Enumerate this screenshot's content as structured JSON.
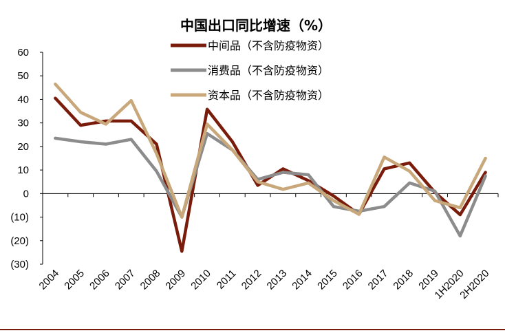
{
  "chart_data": {
    "type": "line",
    "title": "中国出口同比增速（%）",
    "categories": [
      "2004",
      "2005",
      "2006",
      "2007",
      "2008",
      "2009",
      "2010",
      "2011",
      "2012",
      "2013",
      "2014",
      "2015",
      "2016",
      "2017",
      "2018",
      "2019",
      "1H2020",
      "2H2020"
    ],
    "ylim": [
      -30,
      60
    ],
    "yticks": [
      60,
      50,
      40,
      30,
      20,
      10,
      0,
      -10,
      -20,
      -30
    ],
    "ytick_labels": [
      "60",
      "50",
      "40",
      "30",
      "20",
      "10",
      "0",
      "(10)",
      "(20)",
      "(30)"
    ],
    "negative_label_color": "#ff0000",
    "series": [
      {
        "name": "中间品（不含防疫物资）",
        "color": "#7a1c0c",
        "values": [
          40.5,
          29,
          30.8,
          30.8,
          21,
          -24.5,
          35.8,
          22,
          3.5,
          10.5,
          5.5,
          -1,
          -8.8,
          10.5,
          13,
          0.5,
          -9,
          9
        ]
      },
      {
        "name": "消费品（不含防疫物资）",
        "color": "#8c8c8c",
        "values": [
          23.5,
          22,
          21,
          23,
          9.5,
          -10,
          25.5,
          18.5,
          6,
          9,
          8,
          -5.5,
          -7.5,
          -5.5,
          4.5,
          1,
          -18,
          7.5
        ]
      },
      {
        "name": "资本品（不含防疫物资）",
        "color": "#c8a87a",
        "values": [
          46.5,
          34.5,
          29.5,
          39.5,
          17,
          -10,
          29.5,
          18.5,
          5,
          1.8,
          4.5,
          -3,
          -8.8,
          15.5,
          9.5,
          -3,
          -6,
          15
        ]
      }
    ],
    "legend_position": "top-center"
  }
}
